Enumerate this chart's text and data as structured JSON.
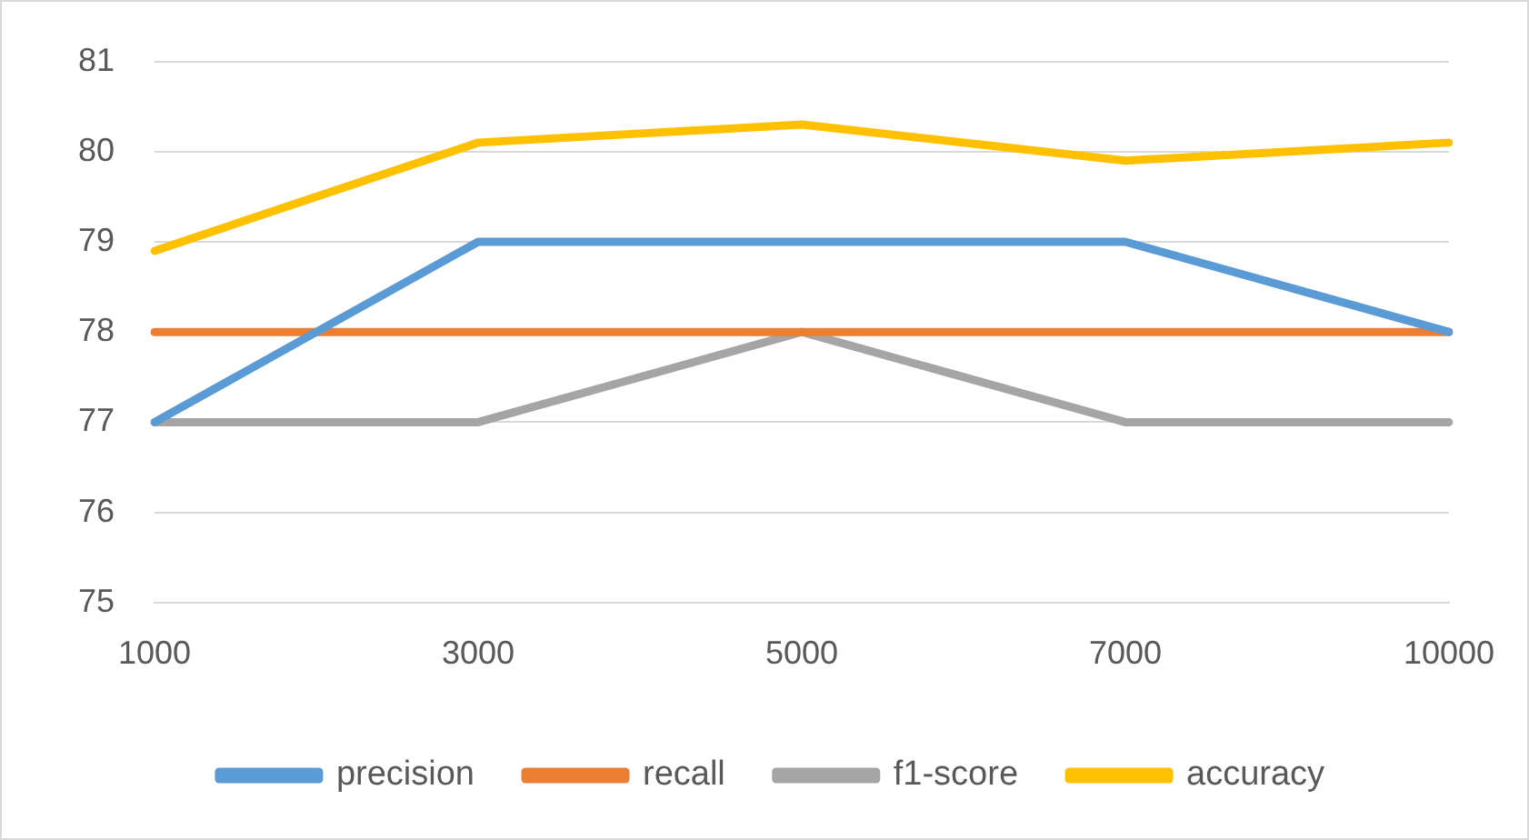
{
  "chart_data": {
    "type": "line",
    "categories": [
      "1000",
      "3000",
      "5000",
      "7000",
      "10000"
    ],
    "series": [
      {
        "name": "precision",
        "color": "#5b9bd5",
        "values": [
          77,
          79,
          79,
          79,
          78
        ]
      },
      {
        "name": "recall",
        "color": "#ed7d31",
        "values": [
          78,
          78,
          78,
          78,
          78
        ]
      },
      {
        "name": "f1-score",
        "color": "#a5a5a5",
        "values": [
          77,
          77,
          78,
          77,
          77
        ]
      },
      {
        "name": "accuracy",
        "color": "#ffc000",
        "values": [
          78.9,
          80.1,
          80.3,
          79.9,
          80.1
        ]
      }
    ],
    "ylim": [
      75,
      81
    ],
    "yticks": [
      75,
      76,
      77,
      78,
      79,
      80,
      81
    ],
    "grid": "y",
    "legend": "bottom",
    "marker": "none",
    "line_style": "solid"
  }
}
